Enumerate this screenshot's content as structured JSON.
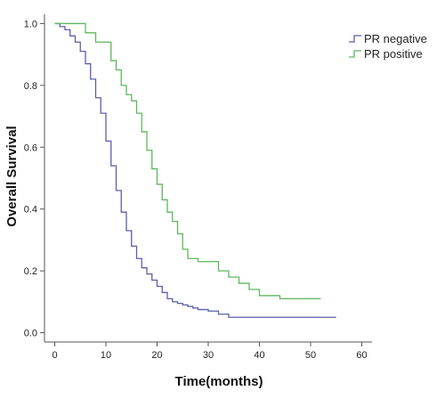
{
  "chart_data": {
    "type": "line",
    "subtype": "kaplan-meier step",
    "title": "",
    "xlabel": "Time(months)",
    "ylabel": "Overall Survival",
    "xlim": [
      -2,
      62
    ],
    "ylim": [
      -0.03,
      1.03
    ],
    "x_ticks": [
      0,
      10,
      20,
      30,
      40,
      50,
      60
    ],
    "y_ticks": [
      0.0,
      0.2,
      0.4,
      0.6,
      0.8,
      1.0
    ],
    "x_tick_labels": [
      "0",
      "10",
      "20",
      "30",
      "40",
      "50",
      "60"
    ],
    "y_tick_labels": [
      "0.0",
      "0.2",
      "0.4",
      "0.6",
      "0.8",
      "1.0"
    ],
    "grid": false,
    "legend_position": "top-right",
    "series": [
      {
        "name": "PR negative",
        "color": "#5b5fa8",
        "x": [
          0,
          1,
          2,
          3,
          4,
          5,
          6,
          7,
          8,
          9,
          10,
          11,
          12,
          13,
          14,
          15,
          16,
          17,
          18,
          19,
          20,
          21,
          22,
          23,
          24,
          25,
          26,
          27,
          28,
          30,
          32,
          34,
          36,
          40,
          44,
          50,
          55
        ],
        "y": [
          1.0,
          0.99,
          0.98,
          0.96,
          0.94,
          0.91,
          0.87,
          0.82,
          0.76,
          0.71,
          0.62,
          0.54,
          0.46,
          0.39,
          0.33,
          0.28,
          0.24,
          0.21,
          0.19,
          0.17,
          0.15,
          0.13,
          0.11,
          0.1,
          0.095,
          0.09,
          0.085,
          0.08,
          0.075,
          0.07,
          0.06,
          0.05,
          0.05,
          0.05,
          0.05,
          0.05,
          0.05
        ]
      },
      {
        "name": "PR positive",
        "color": "#5cb85c",
        "x": [
          0,
          6,
          8,
          11,
          12,
          13,
          14,
          15,
          16,
          17,
          18,
          19,
          20,
          21,
          22,
          23,
          24,
          25,
          26,
          28,
          30,
          32,
          34,
          36,
          38,
          40,
          44,
          48,
          52
        ],
        "y": [
          1.0,
          0.97,
          0.94,
          0.88,
          0.85,
          0.8,
          0.77,
          0.75,
          0.71,
          0.65,
          0.59,
          0.53,
          0.48,
          0.43,
          0.39,
          0.36,
          0.32,
          0.27,
          0.24,
          0.23,
          0.23,
          0.2,
          0.18,
          0.16,
          0.14,
          0.12,
          0.11,
          0.11,
          0.11
        ]
      }
    ]
  }
}
